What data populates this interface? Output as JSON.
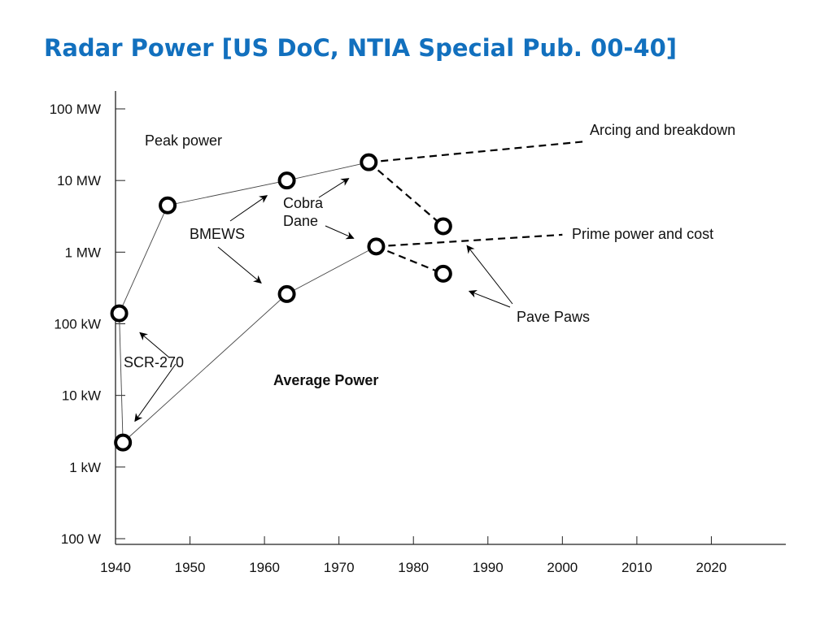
{
  "slide": {
    "title": "Radar Power [US DoC, NTIA Special Pub. 00-40]"
  },
  "chart_data": {
    "type": "scatter",
    "title": "",
    "xlabel": "",
    "ylabel": "",
    "x_ticks": [
      1940,
      1950,
      1960,
      1970,
      1980,
      1990,
      2000,
      2010,
      2020
    ],
    "y_scale": "log",
    "y_tick_values": [
      100,
      1000,
      10000,
      100000,
      1000000,
      10000000,
      100000000
    ],
    "y_tick_labels": [
      "100 W",
      "1 kW",
      "10 kW",
      "100 kW",
      "1 MW",
      "10 MW",
      "100 MW"
    ],
    "xlim": [
      1940,
      2030
    ],
    "ylim_watts": [
      100,
      200000000
    ],
    "grid": false,
    "series": [
      {
        "name": "Peak power",
        "points": [
          {
            "x": 1940.5,
            "y": 140000
          },
          {
            "x": 1947,
            "y": 4500000
          },
          {
            "x": 1963,
            "y": 10000000
          },
          {
            "x": 1974,
            "y": 18000000
          },
          {
            "x": 1984,
            "y": 2300000
          }
        ]
      },
      {
        "name": "Average Power",
        "points": [
          {
            "x": 1941,
            "y": 2200
          },
          {
            "x": 1963,
            "y": 260000
          },
          {
            "x": 1975,
            "y": 1200000
          },
          {
            "x": 1984,
            "y": 500000
          }
        ]
      }
    ],
    "trend_lines": [
      {
        "label": "Arcing and breakdown",
        "from": {
          "x": 1974,
          "y": 18000000
        },
        "to": {
          "x": 2003,
          "y": 35000000
        }
      },
      {
        "label": "Prime power and cost",
        "from": {
          "x": 1975,
          "y": 1200000
        },
        "to": {
          "x": 2000,
          "y": 1750000
        }
      }
    ],
    "dashed_segments": [
      {
        "from": {
          "x": 1974,
          "y": 18000000
        },
        "to": {
          "x": 1984,
          "y": 2300000
        }
      },
      {
        "from": {
          "x": 1975,
          "y": 1200000
        },
        "to": {
          "x": 1984,
          "y": 500000
        }
      }
    ],
    "annotations": [
      {
        "id": "scr270",
        "text": "SCR-270",
        "targets": [
          {
            "x": 1940.5,
            "y": 140000
          },
          {
            "x": 1941,
            "y": 2200
          }
        ]
      },
      {
        "id": "bmews",
        "text": "BMEWS",
        "targets": [
          {
            "x": 1963,
            "y": 10000000
          },
          {
            "x": 1963,
            "y": 260000
          }
        ]
      },
      {
        "id": "cobra",
        "text_lines": [
          "Cobra",
          "Dane"
        ],
        "targets": [
          {
            "x": 1974,
            "y": 18000000
          },
          {
            "x": 1975,
            "y": 1200000
          }
        ]
      },
      {
        "id": "pavepaws",
        "text": "Pave Paws",
        "targets": [
          {
            "x": 1984,
            "y": 2300000
          },
          {
            "x": 1984,
            "y": 500000
          }
        ]
      }
    ]
  }
}
